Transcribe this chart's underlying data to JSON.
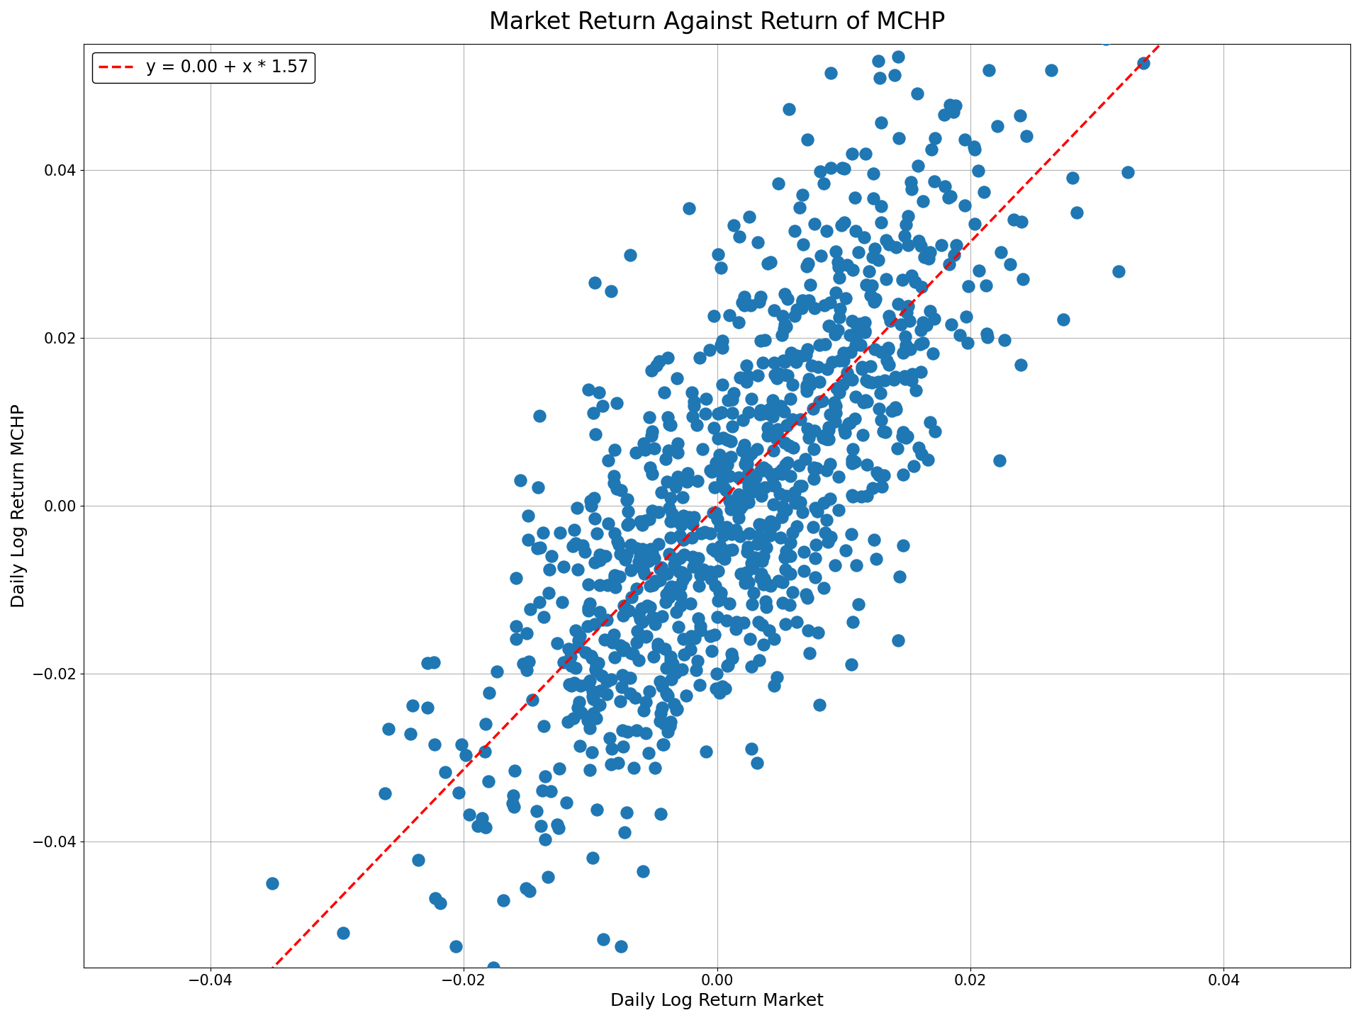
{
  "title": "Market Return Against Return of MCHP",
  "xlabel": "Daily Log Return Market",
  "ylabel": "Daily Log Return MCHP",
  "legend_label": "y = 0.00 + x * 1.57",
  "intercept": 0.0,
  "slope": 1.57,
  "dot_color": "#1f77b4",
  "line_color": "red",
  "dot_size": 150,
  "dot_alpha": 1.0,
  "xlim": [
    -0.05,
    0.05
  ],
  "ylim": [
    -0.055,
    0.055
  ],
  "xticks": [
    -0.04,
    -0.02,
    0.0,
    0.02,
    0.04
  ],
  "yticks": [
    -0.04,
    -0.02,
    0.0,
    0.02,
    0.04
  ],
  "seed": 12,
  "n_points": 1000,
  "market_std": 0.01,
  "noise_std": 0.014,
  "title_fontsize": 24,
  "label_fontsize": 18,
  "tick_fontsize": 15,
  "legend_fontsize": 17
}
